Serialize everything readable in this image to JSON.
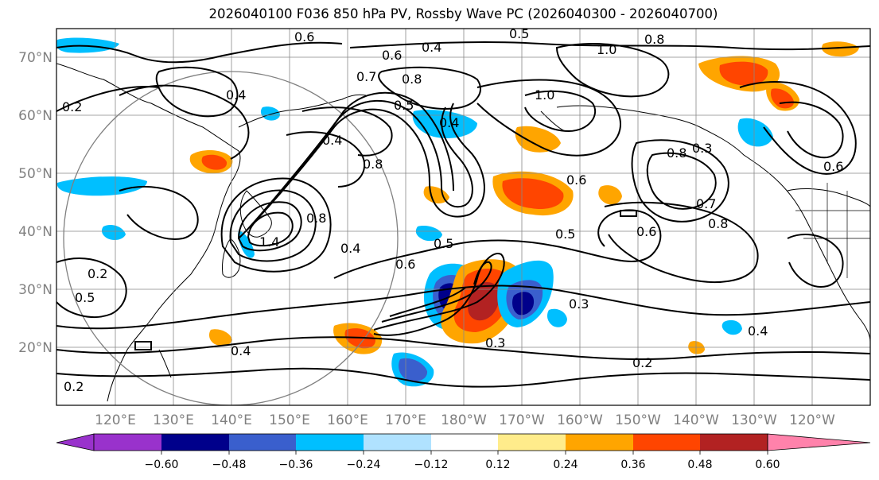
{
  "title": "2026040100 F036 850 hPa PV, Rossby Wave PC (2026040300 - 2026040700)",
  "lat_labels": [
    "70°N",
    "60°N",
    "50°N",
    "40°N",
    "30°N",
    "20°N"
  ],
  "lon_labels": [
    "120°E",
    "130°E",
    "140°E",
    "150°E",
    "160°E",
    "170°E",
    "180°W",
    "170°W",
    "160°W",
    "150°W",
    "140°W",
    "130°W",
    "120°W"
  ],
  "colorbar": {
    "ticks": [
      "−0.60",
      "−0.48",
      "−0.36",
      "−0.24",
      "−0.12",
      "0.12",
      "0.24",
      "0.36",
      "0.48",
      "0.60"
    ],
    "colors": [
      "#9932cc",
      "#00008b",
      "#3a5fcd",
      "#00bfff",
      "#b0e2ff",
      "#ffffff",
      "#ffec8b",
      "#ffa500",
      "#ff4500",
      "#b22222",
      "#ff82ab"
    ]
  },
  "contour_labels": [
    "0.6",
    "0.5",
    "0.4",
    "1.0",
    "0.8",
    "0.7",
    "0.6",
    "0.8",
    "0.4",
    "0.2",
    "0.5",
    "0.4",
    "1.0",
    "0.8",
    "0.6",
    "0.4",
    "0.3",
    "1.4",
    "0.5",
    "0.8",
    "0.6",
    "0.4",
    "0.5",
    "0.6",
    "0.3",
    "0.7",
    "0.8",
    "0.6",
    "0.4",
    "0.3",
    "0.2",
    "0.4",
    "0.2",
    "0.2",
    "0.5",
    "0.8"
  ]
}
